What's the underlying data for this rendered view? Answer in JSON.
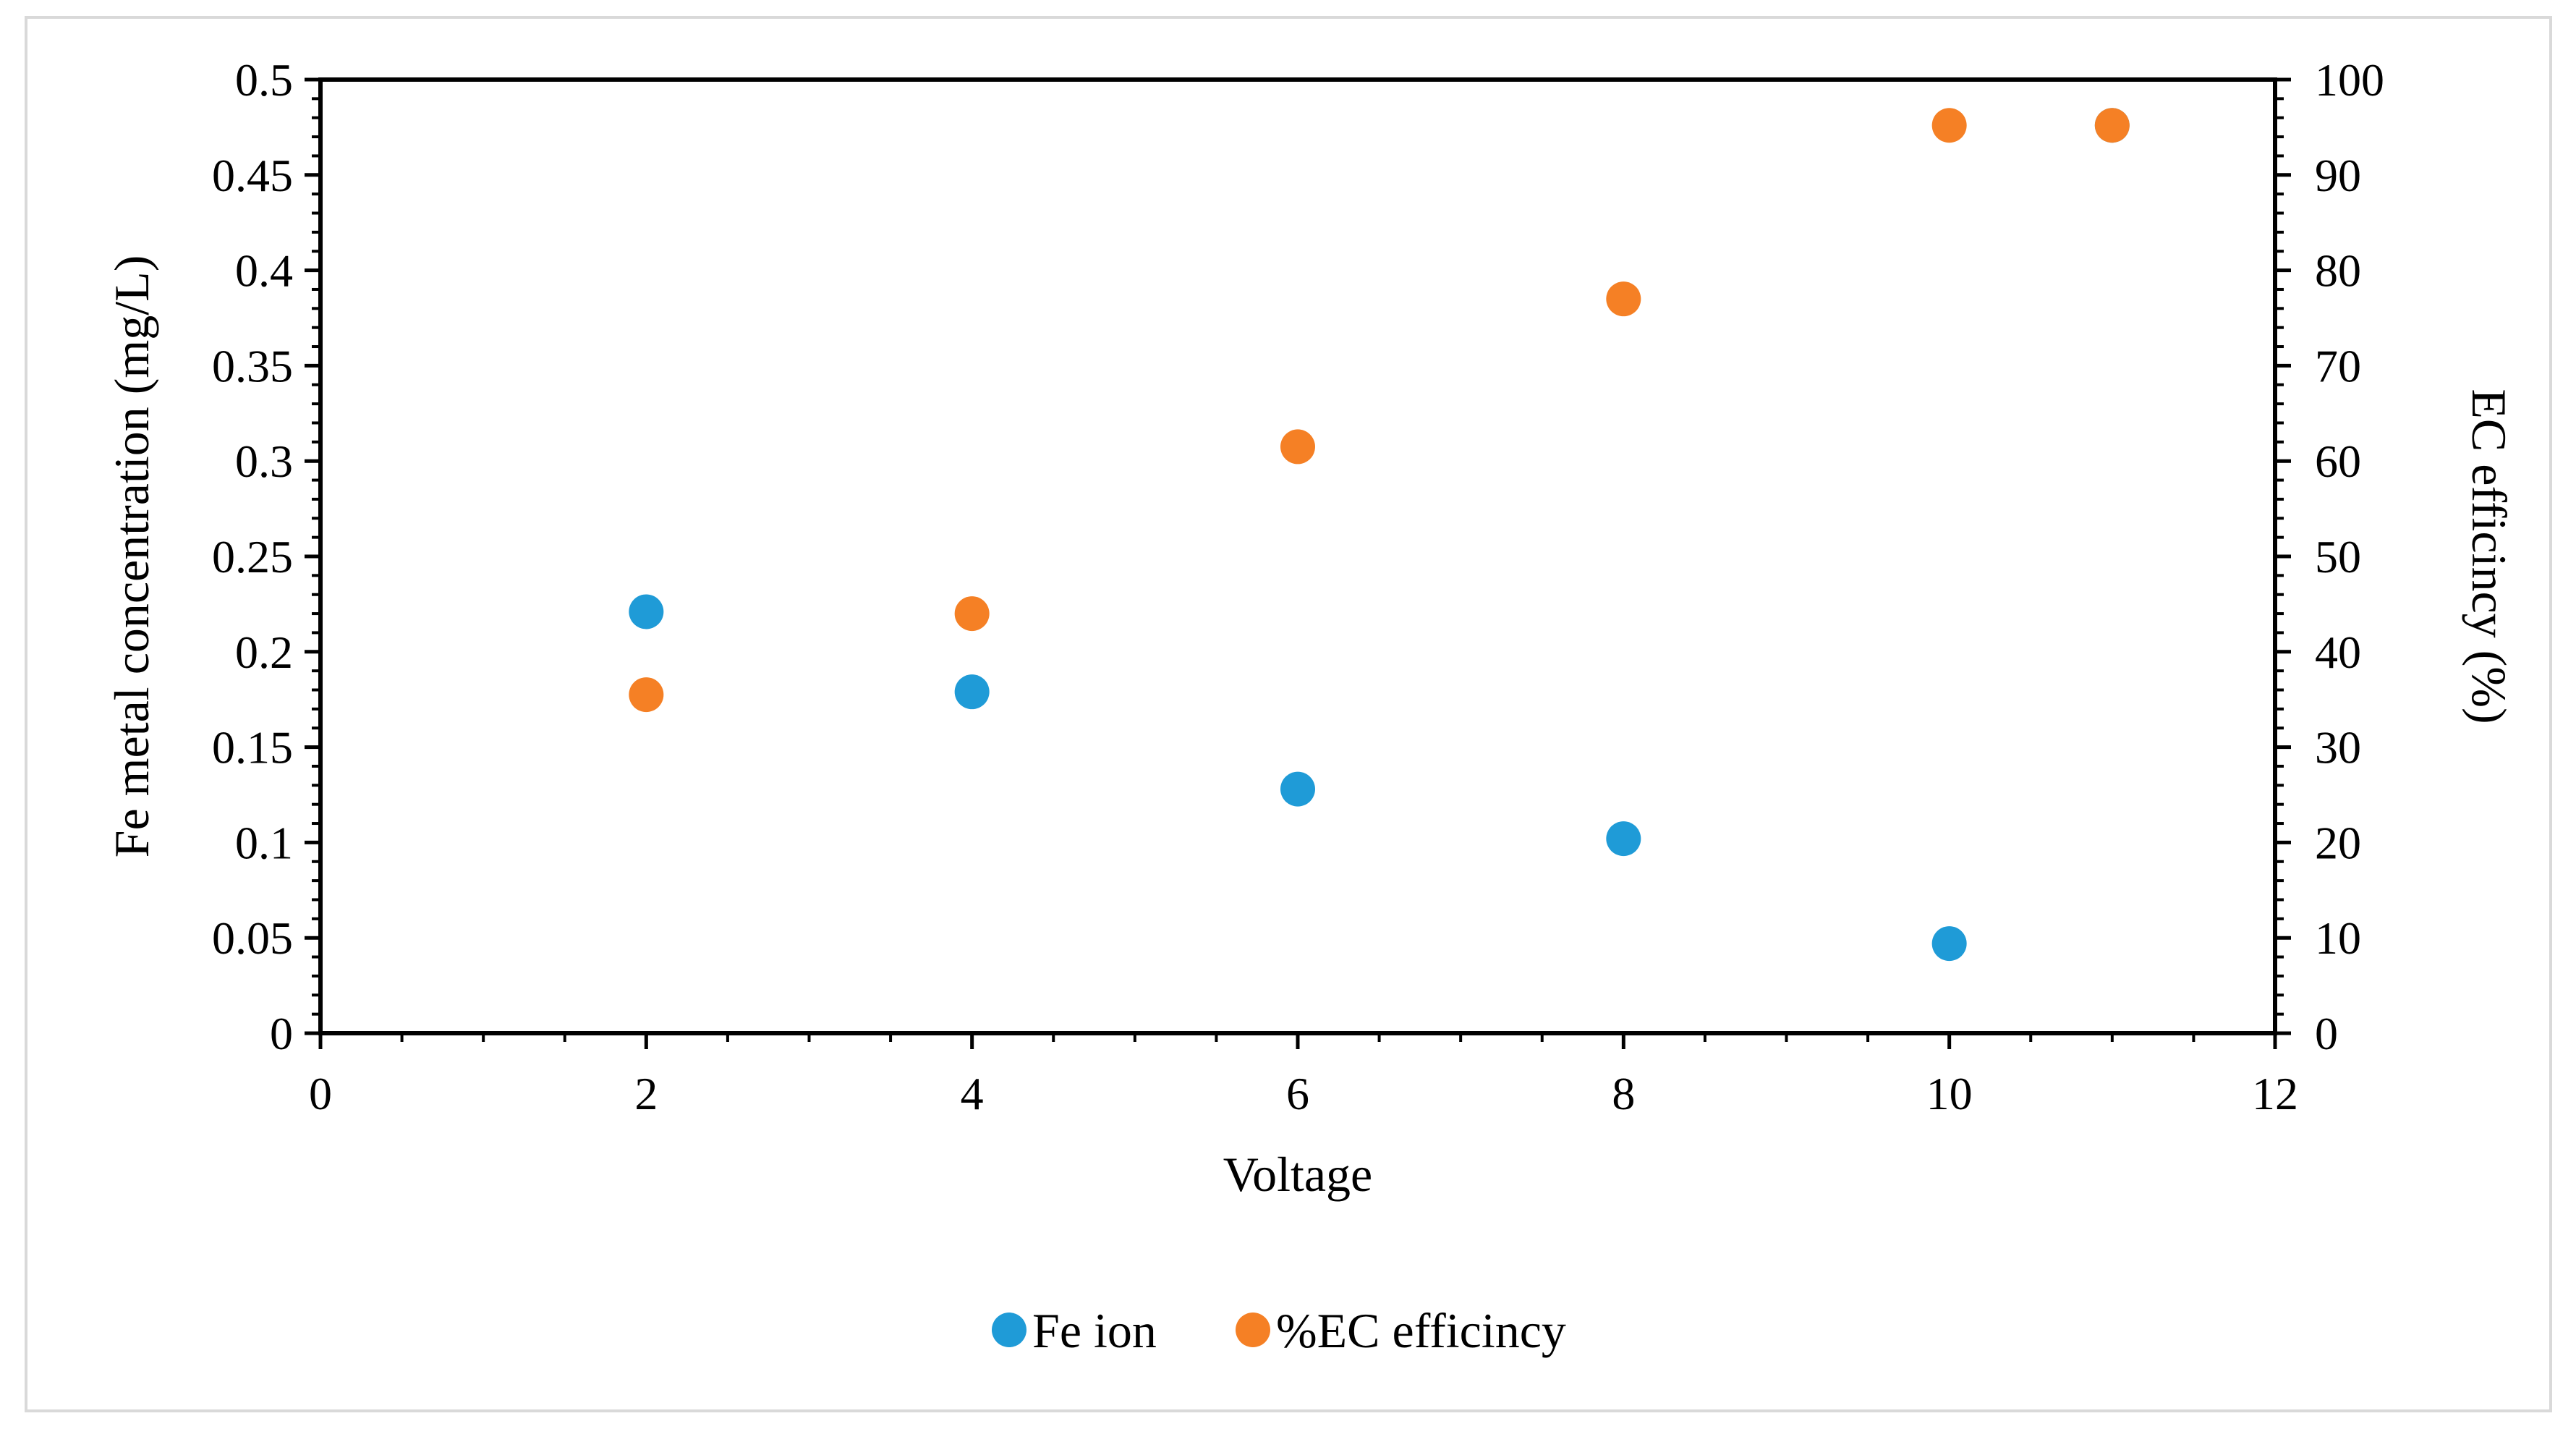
{
  "chart_data": {
    "type": "scatter",
    "title": "",
    "xlabel": "Voltage",
    "ylabel": "Fe metal concentration (mg/L)",
    "y2label": "EC efficincy (%)",
    "xlim": [
      0,
      12
    ],
    "ylim": [
      0,
      0.5
    ],
    "y2lim": [
      0,
      100
    ],
    "grid": false,
    "legend": "bottom-center",
    "x_ticks": [
      "0",
      "2",
      "4",
      "6",
      "8",
      "10",
      "12"
    ],
    "y_ticks": [
      "0",
      "0.05",
      "0.1",
      "0.15",
      "0.2",
      "0.25",
      "0.3",
      "0.35",
      "0.4",
      "0.45",
      "0.5"
    ],
    "y2_ticks": [
      "0",
      "10",
      "20",
      "30",
      "40",
      "50",
      "60",
      "70",
      "80",
      "90",
      "100"
    ],
    "series": [
      {
        "name": "Fe ion",
        "axis": "left",
        "color": "#1f9bd7",
        "x": [
          2,
          4,
          6,
          8,
          10,
          11
        ],
        "y": [
          0.221,
          0.179,
          0.128,
          0.102,
          0.047,
          0.476
        ]
      },
      {
        "name": "%EC efficincy",
        "axis": "right",
        "color": "#f58025",
        "x": [
          2,
          4,
          6,
          8,
          10,
          11
        ],
        "y": [
          35.5,
          44.0,
          61.5,
          77.0,
          95.2,
          95.2
        ]
      }
    ]
  }
}
